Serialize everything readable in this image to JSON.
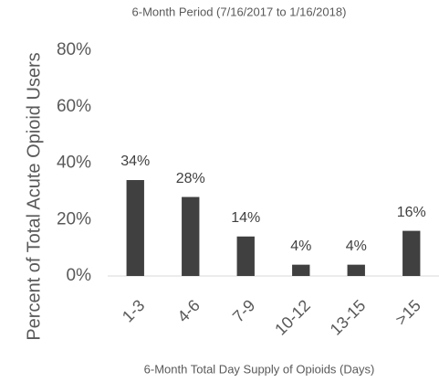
{
  "chart_data": {
    "type": "bar",
    "title": "6-Month Period (7/16/2017 to 1/16/2018)",
    "x_label": "6-Month Total Day Supply of Opioids (Days)",
    "y_label": "Percent of Total Acute Opioid Users",
    "categories": [
      "1-3",
      "4-6",
      "7-9",
      "10-12",
      "13-15",
      ">15"
    ],
    "values": [
      34,
      28,
      14,
      4,
      4,
      16
    ],
    "value_labels": [
      "34%",
      "28%",
      "14%",
      "4%",
      "4%",
      "16%"
    ],
    "color": "#404040",
    "ylim": [
      0,
      80
    ],
    "yticks": [
      {
        "value": 0,
        "label": "0%"
      },
      {
        "value": 20,
        "label": "20%"
      },
      {
        "value": 40,
        "label": "40%"
      },
      {
        "value": 60,
        "label": "60%"
      },
      {
        "value": 80,
        "label": "80%"
      }
    ],
    "grid": false
  }
}
